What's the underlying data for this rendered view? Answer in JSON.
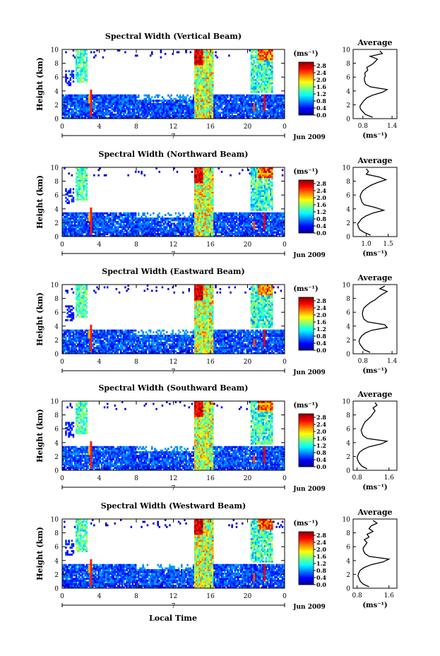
{
  "figure": {
    "xlabel": "Local Time",
    "date_label": "Jun 2009",
    "day_label": "7"
  },
  "chart_data": [
    {
      "type": "heatmap",
      "title": "Spectral Width (Vertical Beam)",
      "ylabel": "Height (km)",
      "xlim": [
        0,
        24
      ],
      "ylim": [
        0,
        10
      ],
      "xticks": [
        "0",
        "4",
        "8",
        "12",
        "16",
        "20",
        "0"
      ],
      "yticks": [
        "0",
        "2",
        "4",
        "6",
        "8",
        "10"
      ],
      "colorbar": {
        "unit": "(ms⁻¹)",
        "ticks": [
          "0.0",
          "0.4",
          "0.8",
          "1.2",
          "1.6",
          "2.0",
          "2.4",
          "2.8"
        ],
        "range": [
          0,
          3.0
        ]
      },
      "profile": {
        "title": "Average",
        "xlabel": "(ms⁻¹)",
        "xticks": [
          "0.8",
          "1.4"
        ],
        "xlim": [
          0.6,
          1.5
        ],
        "ylim": [
          0,
          10
        ],
        "heights": [
          0.2,
          0.6,
          1.0,
          1.4,
          1.8,
          2.2,
          2.6,
          3.0,
          3.4,
          3.8,
          4.2,
          4.6,
          5.0,
          5.4,
          5.8,
          6.2,
          6.6,
          7.0,
          7.4,
          7.8,
          8.2,
          8.6,
          9.0,
          9.4,
          9.8
        ],
        "values": [
          1.0,
          0.85,
          0.8,
          0.75,
          0.74,
          0.78,
          0.82,
          0.88,
          1.0,
          1.2,
          1.3,
          0.95,
          0.86,
          0.84,
          0.83,
          0.85,
          0.84,
          0.9,
          0.88,
          0.98,
          1.05,
          1.1,
          0.95,
          1.2,
          1.15
        ]
      }
    },
    {
      "type": "heatmap",
      "title": "Spectral Width (Northward Beam)",
      "ylabel": "Height (km)",
      "xlim": [
        0,
        24
      ],
      "ylim": [
        0,
        10
      ],
      "xticks": [
        "0",
        "4",
        "8",
        "12",
        "16",
        "20",
        "0"
      ],
      "yticks": [
        "0",
        "2",
        "4",
        "6",
        "8",
        "10"
      ],
      "colorbar": {
        "unit": "(ms⁻¹)",
        "ticks": [
          "0.0",
          "0.4",
          "0.8",
          "1.2",
          "1.6",
          "2.0",
          "2.4",
          "2.8"
        ],
        "range": [
          0,
          3.0
        ]
      },
      "profile": {
        "title": "Average",
        "xlabel": "(ms⁻¹)",
        "xticks": [
          "1.0",
          "1.5"
        ],
        "xlim": [
          0.7,
          1.7
        ],
        "ylim": [
          0,
          10
        ],
        "heights": [
          0.2,
          0.6,
          1.0,
          1.4,
          1.8,
          2.2,
          2.6,
          3.0,
          3.4,
          3.8,
          4.2,
          4.6,
          5.0,
          5.4,
          5.8,
          6.2,
          6.6,
          7.0,
          7.4,
          7.8,
          8.2,
          8.6,
          9.0,
          9.4,
          9.8
        ],
        "values": [
          1.1,
          0.95,
          0.85,
          0.82,
          0.8,
          0.85,
          0.9,
          1.0,
          1.15,
          1.4,
          1.2,
          0.95,
          0.9,
          0.88,
          0.86,
          0.88,
          0.92,
          1.0,
          1.1,
          1.25,
          1.45,
          1.3,
          1.0,
          1.05,
          1.0
        ]
      }
    },
    {
      "type": "heatmap",
      "title": "Spectral Width (Eastward Beam)",
      "ylabel": "Height (km)",
      "xlim": [
        0,
        24
      ],
      "ylim": [
        0,
        10
      ],
      "xticks": [
        "0",
        "4",
        "8",
        "12",
        "16",
        "20",
        "0"
      ],
      "yticks": [
        "0",
        "2",
        "4",
        "6",
        "8",
        "10"
      ],
      "colorbar": {
        "unit": "(ms⁻¹)",
        "ticks": [
          "0.0",
          "0.4",
          "0.8",
          "1.2",
          "1.6",
          "2.0",
          "2.4",
          "2.8"
        ],
        "range": [
          0,
          3.0
        ]
      },
      "profile": {
        "title": "Average",
        "xlabel": "(ms⁻¹)",
        "xticks": [
          "0.8",
          "1.4"
        ],
        "xlim": [
          0.6,
          1.5
        ],
        "ylim": [
          0,
          10
        ],
        "heights": [
          0.2,
          0.6,
          1.0,
          1.4,
          1.8,
          2.2,
          2.6,
          3.0,
          3.4,
          3.8,
          4.2,
          4.6,
          5.0,
          5.4,
          5.8,
          6.2,
          6.6,
          7.0,
          7.4,
          7.8,
          8.2,
          8.6,
          9.0,
          9.4,
          9.8
        ],
        "values": [
          0.95,
          0.82,
          0.78,
          0.74,
          0.72,
          0.74,
          0.78,
          0.85,
          0.98,
          1.3,
          1.25,
          0.9,
          0.82,
          0.8,
          0.79,
          0.8,
          0.82,
          0.88,
          0.95,
          1.05,
          1.12,
          1.2,
          1.3,
          1.15,
          1.25
        ]
      }
    },
    {
      "type": "heatmap",
      "title": "Spectral Width (Southward Beam)",
      "ylabel": "Height (km)",
      "xlim": [
        0,
        24
      ],
      "ylim": [
        0,
        10
      ],
      "xticks": [
        "0",
        "4",
        "8",
        "12",
        "16",
        "20",
        "0"
      ],
      "yticks": [
        "0",
        "2",
        "4",
        "6",
        "8",
        "10"
      ],
      "colorbar": {
        "unit": "(ms⁻¹)",
        "ticks": [
          "0.0",
          "0.4",
          "0.8",
          "1.2",
          "1.6",
          "2.0",
          "2.4",
          "2.8"
        ],
        "range": [
          0,
          3.0
        ]
      },
      "profile": {
        "title": "Average",
        "xlabel": "(ms⁻¹)",
        "xticks": [
          "0.8",
          "1.6"
        ],
        "xlim": [
          0.7,
          1.8
        ],
        "ylim": [
          0,
          10
        ],
        "heights": [
          0.2,
          0.6,
          1.0,
          1.4,
          1.8,
          2.2,
          2.6,
          3.0,
          3.4,
          3.8,
          4.2,
          4.6,
          5.0,
          5.4,
          5.8,
          6.2,
          6.6,
          7.0,
          7.4,
          7.8,
          8.2,
          8.6,
          9.0,
          9.4,
          9.8
        ],
        "values": [
          1.05,
          0.92,
          0.86,
          0.82,
          0.8,
          0.82,
          0.86,
          0.95,
          1.1,
          1.4,
          1.55,
          1.05,
          0.95,
          0.92,
          0.9,
          0.93,
          0.96,
          1.0,
          1.08,
          1.15,
          1.2,
          1.25,
          1.2,
          1.3,
          1.25
        ]
      }
    },
    {
      "type": "heatmap",
      "title": "Spectral Width (Westward Beam)",
      "ylabel": "Height (km)",
      "xlim": [
        0,
        24
      ],
      "ylim": [
        0,
        10
      ],
      "xticks": [
        "0",
        "4",
        "8",
        "12",
        "16",
        "20",
        "0"
      ],
      "yticks": [
        "0",
        "2",
        "4",
        "6",
        "8",
        "10"
      ],
      "colorbar": {
        "unit": "(ms⁻¹)",
        "ticks": [
          "0.0",
          "0.4",
          "0.8",
          "1.2",
          "1.6",
          "2.0",
          "2.4",
          "2.8"
        ],
        "range": [
          0,
          3.0
        ]
      },
      "profile": {
        "title": "Average",
        "xlabel": "(ms⁻¹)",
        "xticks": [
          "0.8",
          "1.6"
        ],
        "xlim": [
          0.7,
          1.8
        ],
        "ylim": [
          0,
          10
        ],
        "heights": [
          0.2,
          0.6,
          1.0,
          1.4,
          1.8,
          2.2,
          2.6,
          3.0,
          3.4,
          3.8,
          4.2,
          4.6,
          5.0,
          5.4,
          5.8,
          6.2,
          6.6,
          7.0,
          7.4,
          7.8,
          8.2,
          8.6,
          9.0,
          9.4,
          9.8
        ],
        "values": [
          1.1,
          0.95,
          0.88,
          0.85,
          0.82,
          0.84,
          0.88,
          0.98,
          1.15,
          1.45,
          1.6,
          1.1,
          1.0,
          0.96,
          0.95,
          1.0,
          1.05,
          0.98,
          1.1,
          1.05,
          1.2,
          1.1,
          1.15,
          1.3,
          1.2
        ]
      }
    }
  ]
}
